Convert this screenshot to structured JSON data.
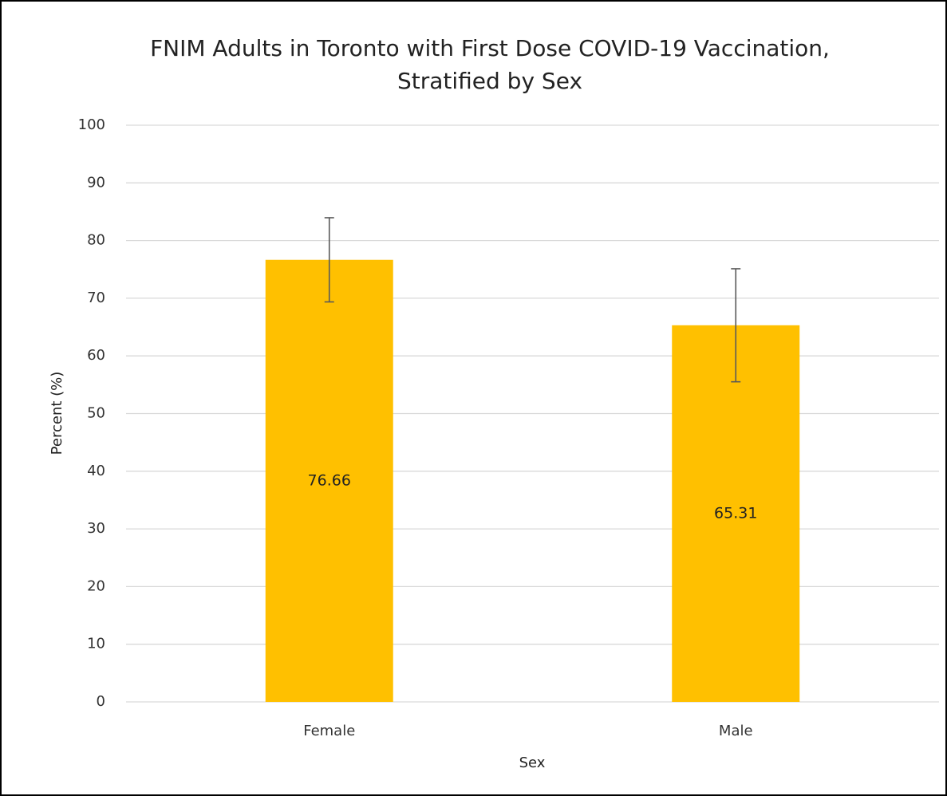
{
  "chart_data": {
    "type": "bar",
    "title": [
      "FNIM Adults in Toronto with First Dose COVID-19 Vaccination,",
      "Stratified by Sex"
    ],
    "x_label": "Sex",
    "y_label": "Percent (%)",
    "categories": [
      "Female",
      "Male"
    ],
    "values": [
      76.66,
      65.31
    ],
    "errors": [
      7.3,
      9.8
    ],
    "color": "#ffc000",
    "error_color": "#595959",
    "ylim": [
      0,
      100
    ],
    "yticks": [
      0,
      10,
      20,
      30,
      40,
      50,
      60,
      70,
      80,
      90,
      100
    ],
    "grid": true,
    "data_labels": true
  }
}
